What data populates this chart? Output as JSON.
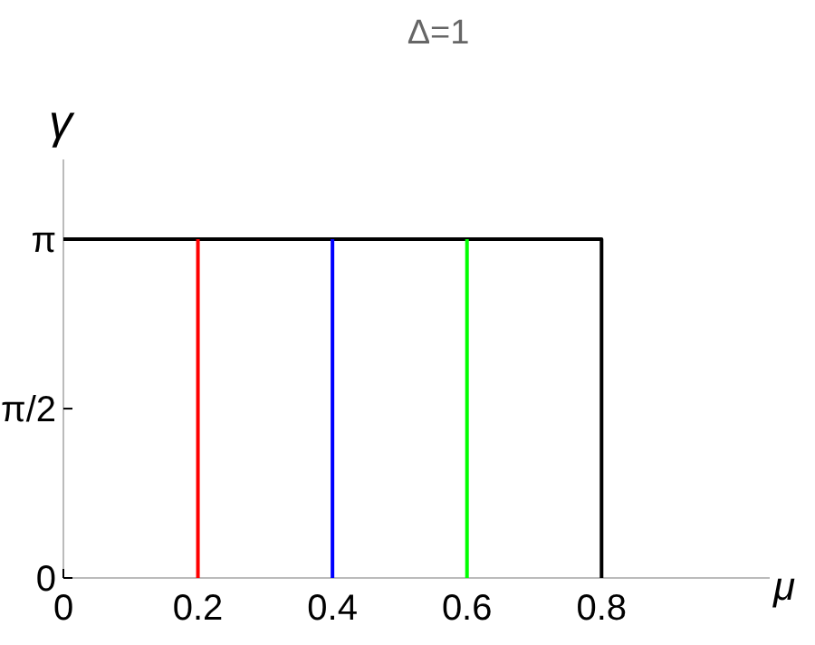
{
  "chart_data": {
    "type": "line",
    "title": "Δ=1",
    "xlabel": "μ",
    "ylabel": "γ",
    "xlim": [
      0,
      1.05
    ],
    "xticks": [
      0,
      0.2,
      0.4,
      0.6,
      0.8
    ],
    "ylim": [
      0,
      3.88
    ],
    "yticks": [
      {
        "value": 0,
        "label": "0"
      },
      {
        "value": 1.57,
        "label": "π/2"
      },
      {
        "value": 3.14,
        "label": "π"
      }
    ],
    "grid": false,
    "line_style": "solid",
    "series": [
      {
        "color": "#000000",
        "x": [
          0,
          0.8,
          0.8
        ],
        "values": [
          3.14,
          3.14,
          0
        ]
      },
      {
        "color": "#ff0000",
        "x": [
          0.2,
          0.2
        ],
        "values": [
          0,
          3.14
        ]
      },
      {
        "color": "#0000ff",
        "x": [
          0.4,
          0.4
        ],
        "values": [
          0,
          3.14
        ]
      },
      {
        "color": "#00ff00",
        "x": [
          0.6,
          0.6
        ],
        "values": [
          0,
          3.14
        ]
      }
    ]
  }
}
